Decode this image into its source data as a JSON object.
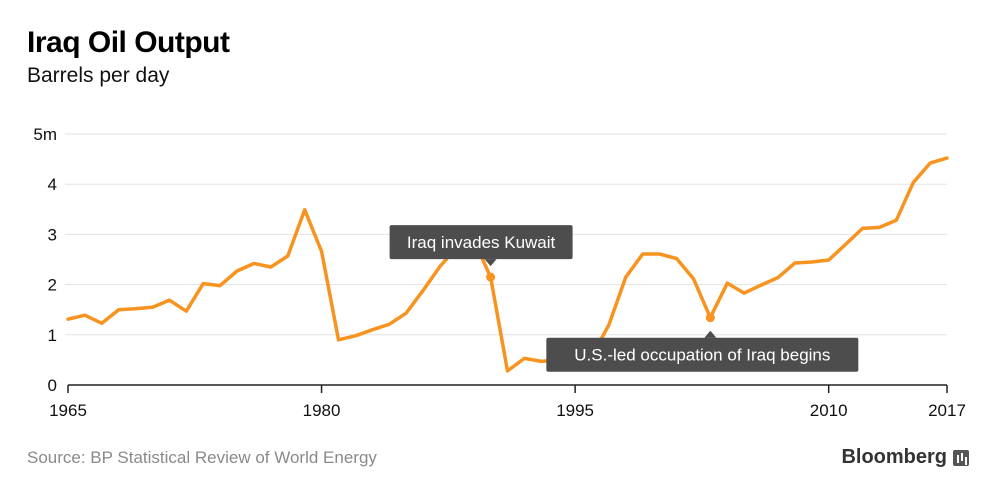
{
  "header": {
    "title": "Iraq Oil Output",
    "subtitle": "Barrels per day"
  },
  "footer": {
    "source": "Source: BP Statistical Review of World Energy",
    "brand": "Bloomberg"
  },
  "colors": {
    "line": "#F7931E",
    "grid": "#e3e3e3",
    "axis": "#222222",
    "annotation_bg": "#4d4d4d",
    "annotation_text": "#ffffff"
  },
  "chart_data": {
    "type": "line",
    "title": "Iraq Oil Output",
    "subtitle": "Barrels per day",
    "xlabel": "",
    "ylabel": "",
    "xlim": [
      1965,
      2017
    ],
    "ylim": [
      0,
      5
    ],
    "x_ticks": [
      {
        "value": 1965,
        "label": "1965"
      },
      {
        "value": 1980,
        "label": "1980"
      },
      {
        "value": 1995,
        "label": "1995"
      },
      {
        "value": 2010,
        "label": "2010"
      },
      {
        "value": 2017,
        "label": "2017"
      }
    ],
    "y_ticks": [
      {
        "value": 0,
        "label": "0"
      },
      {
        "value": 1,
        "label": "1"
      },
      {
        "value": 2,
        "label": "2"
      },
      {
        "value": 3,
        "label": "3"
      },
      {
        "value": 4,
        "label": "4"
      },
      {
        "value": 5,
        "label": "5m"
      }
    ],
    "grid": true,
    "series": [
      {
        "x": [
          1965,
          1966,
          1967,
          1968,
          1969,
          1970,
          1971,
          1972,
          1973,
          1974,
          1975,
          1976,
          1977,
          1978,
          1979,
          1980,
          1981,
          1982,
          1983,
          1984,
          1985,
          1986,
          1987,
          1988,
          1989,
          1990,
          1991,
          1992,
          1993,
          1994,
          1995,
          1996,
          1997,
          1998,
          1999,
          2000,
          2001,
          2002,
          2003,
          2004,
          2005,
          2006,
          2007,
          2008,
          2009,
          2010,
          2011,
          2012,
          2013,
          2014,
          2015,
          2016,
          2017
        ],
        "values": [
          1.31,
          1.39,
          1.23,
          1.5,
          1.52,
          1.55,
          1.69,
          1.47,
          2.02,
          1.98,
          2.27,
          2.42,
          2.35,
          2.57,
          3.49,
          2.66,
          0.9,
          0.98,
          1.1,
          1.21,
          1.43,
          1.88,
          2.36,
          2.74,
          2.9,
          2.15,
          0.28,
          0.53,
          0.47,
          0.5,
          0.52,
          0.58,
          1.2,
          2.15,
          2.61,
          2.61,
          2.52,
          2.12,
          1.34,
          2.03,
          1.83,
          1.99,
          2.14,
          2.43,
          2.45,
          2.49,
          2.8,
          3.12,
          3.14,
          3.28,
          4.03,
          4.42,
          4.52
        ]
      }
    ],
    "annotations": [
      {
        "text": "Iraq invades Kuwait",
        "x": 1990,
        "y": 2.15,
        "placement": "above"
      },
      {
        "text": "U.S.-led occupation of Iraq begins",
        "x": 2003,
        "y": 1.34,
        "placement": "below"
      }
    ]
  }
}
